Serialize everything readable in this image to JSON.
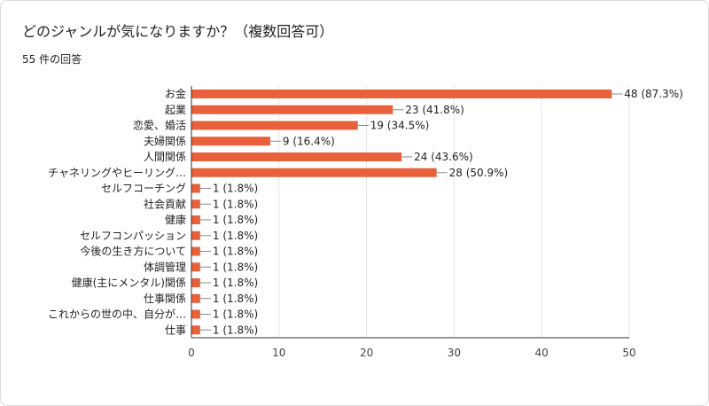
{
  "question": {
    "title": "どのジャンルが気になりますか？（複数回答可）",
    "response_count": "55 件の回答"
  },
  "colors": {
    "bar": "#e8613b",
    "grid": "#e3e3e3",
    "axis": "#333333"
  },
  "chart_data": {
    "type": "bar",
    "orientation": "horizontal",
    "title": "どのジャンルが気になりますか？（複数回答可）",
    "xlabel": "",
    "ylabel": "",
    "xlim": [
      0,
      50
    ],
    "ticks": [
      0,
      10,
      20,
      30,
      40,
      50
    ],
    "grid": true,
    "categories": [
      "お金",
      "起業",
      "恋愛、婚活",
      "夫婦関係",
      "人間関係",
      "チャネリングやヒーリング…",
      "セルフコーチング",
      "社会貢献",
      "健康",
      "セルフコンパッション",
      "今後の生き方について",
      "体調管理",
      "健康(主にメンタル)関係",
      "仕事関係",
      "これからの世の中、自分が…",
      "仕事"
    ],
    "values": [
      48,
      23,
      19,
      9,
      24,
      28,
      1,
      1,
      1,
      1,
      1,
      1,
      1,
      1,
      1,
      1
    ],
    "data_labels": [
      "48 (87.3%)",
      "23 (41.8%)",
      "19 (34.5%)",
      "9 (16.4%)",
      "24 (43.6%)",
      "28 (50.9%)",
      "1 (1.8%)",
      "1 (1.8%)",
      "1 (1.8%)",
      "1 (1.8%)",
      "1 (1.8%)",
      "1 (1.8%)",
      "1 (1.8%)",
      "1 (1.8%)",
      "1 (1.8%)",
      "1 (1.8%)"
    ]
  }
}
